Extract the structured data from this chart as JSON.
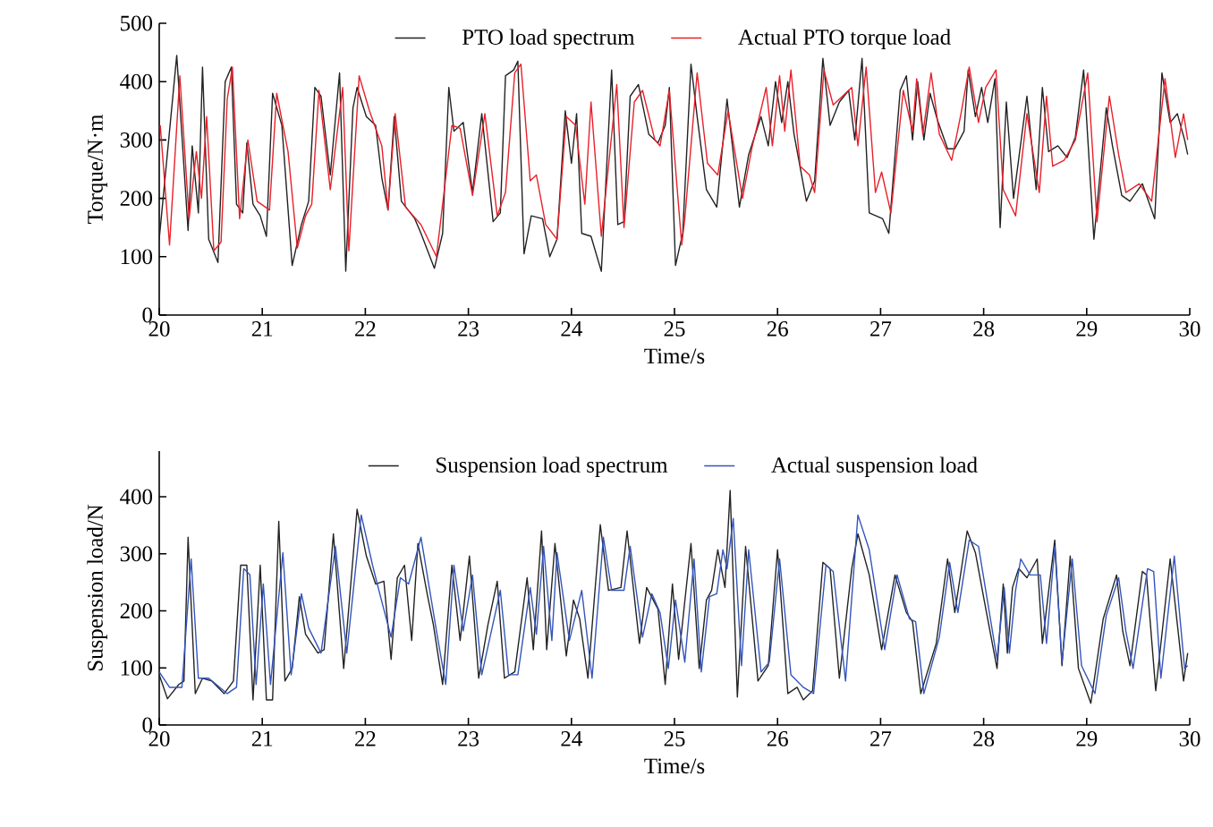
{
  "chart_data": [
    {
      "type": "line",
      "xlabel": "Time/s",
      "ylabel": "Torque/N·m",
      "xlim": [
        20,
        30
      ],
      "ylim": [
        0,
        500
      ],
      "xticks": [
        20,
        21,
        22,
        23,
        24,
        25,
        26,
        27,
        28,
        29,
        30
      ],
      "yticks": [
        0,
        100,
        200,
        300,
        400,
        500
      ],
      "legend": "top",
      "marker": "none",
      "series": [
        {
          "name": "PTO load spectrum",
          "color": "#222222",
          "x": [
            20.0,
            20.17,
            20.28,
            20.32,
            20.38,
            20.42,
            20.48,
            20.57,
            20.64,
            20.7,
            20.75,
            20.81,
            20.85,
            20.91,
            20.98,
            21.04,
            21.1,
            21.19,
            21.29,
            21.38,
            21.45,
            21.51,
            21.57,
            21.66,
            21.75,
            21.81,
            21.88,
            21.92,
            22.01,
            22.1,
            22.16,
            22.22,
            22.28,
            22.35,
            22.48,
            22.54,
            22.67,
            22.75,
            22.81,
            22.86,
            22.95,
            23.04,
            23.13,
            23.24,
            23.31,
            23.36,
            23.44,
            23.48,
            23.54,
            23.61,
            23.72,
            23.79,
            23.86,
            23.94,
            24.0,
            24.05,
            24.1,
            24.19,
            24.29,
            24.39,
            24.45,
            24.51,
            24.57,
            24.65,
            24.75,
            24.84,
            24.91,
            24.95,
            25.01,
            25.08,
            25.16,
            25.22,
            25.31,
            25.41,
            25.51,
            25.63,
            25.72,
            25.84,
            25.91,
            25.98,
            26.04,
            26.1,
            26.16,
            26.28,
            26.36,
            26.44,
            26.51,
            26.6,
            26.69,
            26.75,
            26.82,
            26.89,
            27.02,
            27.08,
            27.19,
            27.25,
            27.31,
            27.36,
            27.42,
            27.48,
            27.55,
            27.65,
            27.72,
            27.81,
            27.85,
            27.92,
            27.98,
            28.04,
            28.11,
            28.16,
            28.22,
            28.29,
            28.42,
            28.51,
            28.57,
            28.63,
            28.72,
            28.81,
            28.89,
            28.97,
            29.07,
            29.19,
            29.25,
            29.34,
            29.42,
            29.54,
            29.66,
            29.73,
            29.81,
            29.88,
            29.95,
            29.98
          ],
          "values": [
            130,
            445,
            145,
            290,
            175,
            425,
            130,
            90,
            400,
            425,
            190,
            175,
            295,
            190,
            170,
            135,
            380,
            325,
            85,
            155,
            195,
            390,
            375,
            240,
            415,
            75,
            355,
            390,
            340,
            325,
            235,
            180,
            340,
            195,
            165,
            140,
            80,
            140,
            390,
            315,
            330,
            210,
            345,
            160,
            175,
            410,
            420,
            435,
            105,
            170,
            165,
            100,
            130,
            350,
            260,
            345,
            140,
            135,
            75,
            420,
            155,
            160,
            375,
            395,
            310,
            295,
            325,
            390,
            85,
            140,
            430,
            340,
            215,
            185,
            370,
            185,
            275,
            340,
            290,
            400,
            330,
            400,
            310,
            195,
            230,
            440,
            325,
            365,
            385,
            300,
            440,
            175,
            165,
            140,
            385,
            410,
            300,
            400,
            300,
            380,
            335,
            285,
            285,
            315,
            420,
            340,
            390,
            330,
            405,
            150,
            365,
            200,
            375,
            215,
            390,
            280,
            290,
            270,
            305,
            420,
            130,
            355,
            290,
            205,
            195,
            225,
            165,
            415,
            330,
            345,
            300,
            275
          ]
        },
        {
          "name": "Actual PTO torque load",
          "color": "#e8202a",
          "x": [
            20.01,
            20.1,
            20.2,
            20.29,
            20.36,
            20.41,
            20.46,
            20.53,
            20.6,
            20.66,
            20.71,
            20.78,
            20.86,
            20.95,
            21.07,
            21.14,
            21.25,
            21.34,
            21.42,
            21.48,
            21.55,
            21.66,
            21.78,
            21.84,
            21.94,
            22.04,
            22.16,
            22.22,
            22.29,
            22.39,
            22.54,
            22.69,
            22.84,
            22.92,
            23.04,
            23.16,
            23.28,
            23.36,
            23.45,
            23.51,
            23.6,
            23.66,
            23.75,
            23.86,
            23.95,
            24.04,
            24.13,
            24.19,
            24.29,
            24.44,
            24.51,
            24.61,
            24.69,
            24.81,
            24.86,
            24.95,
            25.07,
            25.1,
            25.22,
            25.32,
            25.42,
            25.52,
            25.66,
            25.75,
            25.89,
            25.95,
            26.02,
            26.07,
            26.13,
            26.22,
            26.31,
            26.36,
            26.45,
            26.54,
            26.63,
            26.72,
            26.78,
            26.86,
            26.95,
            27.01,
            27.1,
            27.22,
            27.31,
            27.35,
            27.41,
            27.49,
            27.57,
            27.69,
            27.78,
            27.86,
            27.95,
            28.02,
            28.12,
            28.19,
            28.31,
            28.42,
            28.54,
            28.61,
            28.67,
            28.78,
            28.89,
            29.01,
            29.1,
            29.22,
            29.31,
            29.38,
            29.51,
            29.63,
            29.76,
            29.86,
            29.94,
            29.98
          ],
          "values": [
            325,
            120,
            410,
            165,
            280,
            200,
            340,
            110,
            125,
            370,
            425,
            165,
            300,
            195,
            180,
            380,
            280,
            115,
            170,
            190,
            385,
            215,
            390,
            110,
            410,
            350,
            290,
            180,
            345,
            185,
            155,
            100,
            325,
            320,
            205,
            345,
            170,
            210,
            415,
            430,
            230,
            240,
            155,
            130,
            340,
            325,
            190,
            365,
            135,
            395,
            150,
            365,
            385,
            300,
            290,
            385,
            120,
            165,
            415,
            260,
            240,
            350,
            200,
            285,
            390,
            290,
            410,
            315,
            420,
            255,
            240,
            210,
            420,
            360,
            375,
            390,
            290,
            425,
            210,
            245,
            175,
            385,
            315,
            405,
            310,
            415,
            310,
            265,
            345,
            425,
            330,
            390,
            420,
            215,
            170,
            345,
            210,
            375,
            255,
            265,
            300,
            415,
            160,
            375,
            275,
            210,
            225,
            195,
            405,
            270,
            345,
            300
          ]
        }
      ]
    },
    {
      "type": "line",
      "xlabel": "Time/s",
      "ylabel": "Suspension load/N",
      "xlim": [
        20,
        30
      ],
      "ylim": [
        0,
        480
      ],
      "xticks": [
        20,
        21,
        22,
        23,
        24,
        25,
        26,
        27,
        28,
        29,
        30
      ],
      "yticks": [
        0,
        100,
        200,
        300,
        400
      ],
      "legend": "top",
      "marker": "none",
      "series": [
        {
          "name": "Suspension load spectrum",
          "color": "#222222",
          "x": [
            20.0,
            20.08,
            20.19,
            20.24,
            20.28,
            20.35,
            20.42,
            20.51,
            20.63,
            20.72,
            20.79,
            20.85,
            20.91,
            20.98,
            21.04,
            21.1,
            21.16,
            21.22,
            21.29,
            21.36,
            21.42,
            21.54,
            21.6,
            21.69,
            21.79,
            21.92,
            22.01,
            22.1,
            22.18,
            22.25,
            22.31,
            22.38,
            22.45,
            22.51,
            22.6,
            22.66,
            22.75,
            22.84,
            22.92,
            23.01,
            23.1,
            23.19,
            23.28,
            23.35,
            23.45,
            23.57,
            23.63,
            23.71,
            23.76,
            23.84,
            23.95,
            24.02,
            24.08,
            24.16,
            24.28,
            24.36,
            24.48,
            24.54,
            24.66,
            24.73,
            24.84,
            24.91,
            24.98,
            25.04,
            25.16,
            25.24,
            25.31,
            25.36,
            25.42,
            25.49,
            25.54,
            25.61,
            25.69,
            25.81,
            25.91,
            26.0,
            26.1,
            26.19,
            26.25,
            26.34,
            26.44,
            26.51,
            26.6,
            26.72,
            26.78,
            26.89,
            27.01,
            27.14,
            27.25,
            27.31,
            27.39,
            27.54,
            27.65,
            27.72,
            27.84,
            27.92,
            28.01,
            28.13,
            28.19,
            28.23,
            28.28,
            28.34,
            28.42,
            28.52,
            28.57,
            28.69,
            28.76,
            28.84,
            28.92,
            29.04,
            29.16,
            29.29,
            29.35,
            29.42,
            29.54,
            29.58,
            29.67,
            29.81,
            29.94,
            29.98
          ],
          "values": [
            88,
            46,
            71,
            77,
            329,
            55,
            82,
            77,
            55,
            77,
            280,
            280,
            44,
            280,
            44,
            44,
            357,
            77,
            99,
            225,
            159,
            126,
            132,
            335,
            99,
            378,
            296,
            247,
            252,
            115,
            258,
            280,
            148,
            318,
            230,
            176,
            71,
            280,
            148,
            296,
            82,
            176,
            252,
            82,
            93,
            258,
            132,
            340,
            132,
            318,
            121,
            219,
            186,
            82,
            351,
            236,
            241,
            340,
            143,
            241,
            203,
            71,
            247,
            115,
            318,
            99,
            219,
            236,
            307,
            241,
            411,
            49,
            313,
            77,
            104,
            307,
            55,
            66,
            44,
            60,
            285,
            274,
            82,
            274,
            335,
            263,
            132,
            263,
            197,
            181,
            55,
            143,
            291,
            197,
            340,
            302,
            214,
            99,
            247,
            126,
            241,
            274,
            258,
            291,
            143,
            324,
            104,
            296,
            99,
            38,
            186,
            263,
            164,
            104,
            269,
            263,
            60,
            291,
            77,
            126
          ]
        },
        {
          "name": "Actual suspension load",
          "color": "#3355bb",
          "x": [
            20.0,
            20.1,
            20.22,
            20.31,
            20.38,
            20.48,
            20.66,
            20.75,
            20.82,
            20.88,
            20.94,
            21.01,
            21.08,
            21.2,
            21.28,
            21.38,
            21.45,
            21.57,
            21.71,
            21.82,
            21.96,
            22.07,
            22.14,
            22.25,
            22.34,
            22.42,
            22.54,
            22.69,
            22.78,
            22.86,
            22.95,
            23.04,
            23.13,
            23.31,
            23.39,
            23.48,
            23.6,
            23.66,
            23.73,
            23.81,
            23.86,
            23.98,
            24.1,
            24.2,
            24.31,
            24.39,
            24.51,
            24.57,
            24.69,
            24.78,
            24.86,
            24.94,
            25.01,
            25.1,
            25.19,
            25.26,
            25.34,
            25.41,
            25.47,
            25.51,
            25.57,
            25.65,
            25.72,
            25.84,
            25.92,
            26.02,
            26.13,
            26.25,
            26.35,
            26.47,
            26.54,
            26.66,
            26.78,
            26.89,
            27.04,
            27.16,
            27.28,
            27.34,
            27.42,
            27.57,
            27.67,
            27.75,
            27.86,
            27.95,
            28.04,
            28.13,
            28.2,
            28.25,
            28.31,
            28.36,
            28.45,
            28.55,
            28.61,
            28.69,
            28.76,
            28.86,
            28.95,
            29.08,
            29.19,
            29.31,
            29.38,
            29.45,
            29.59,
            29.65,
            29.72,
            29.85,
            29.95,
            29.98
          ],
          "values": [
            93,
            66,
            66,
            291,
            82,
            82,
            55,
            66,
            274,
            263,
            71,
            247,
            71,
            302,
            88,
            230,
            170,
            126,
            313,
            126,
            368,
            280,
            230,
            154,
            258,
            247,
            329,
            165,
            71,
            280,
            165,
            263,
            88,
            236,
            88,
            88,
            241,
            159,
            313,
            148,
            302,
            148,
            236,
            82,
            329,
            236,
            236,
            313,
            154,
            230,
            197,
            99,
            219,
            110,
            291,
            93,
            225,
            230,
            307,
            274,
            362,
            104,
            307,
            93,
            110,
            291,
            88,
            66,
            55,
            280,
            269,
            77,
            368,
            307,
            132,
            263,
            186,
            181,
            55,
            154,
            285,
            197,
            324,
            313,
            214,
            115,
            241,
            126,
            236,
            291,
            263,
            263,
            143,
            313,
            110,
            291,
            104,
            55,
            192,
            258,
            164,
            99,
            274,
            269,
            82,
            296,
            99,
            104
          ]
        }
      ]
    }
  ]
}
